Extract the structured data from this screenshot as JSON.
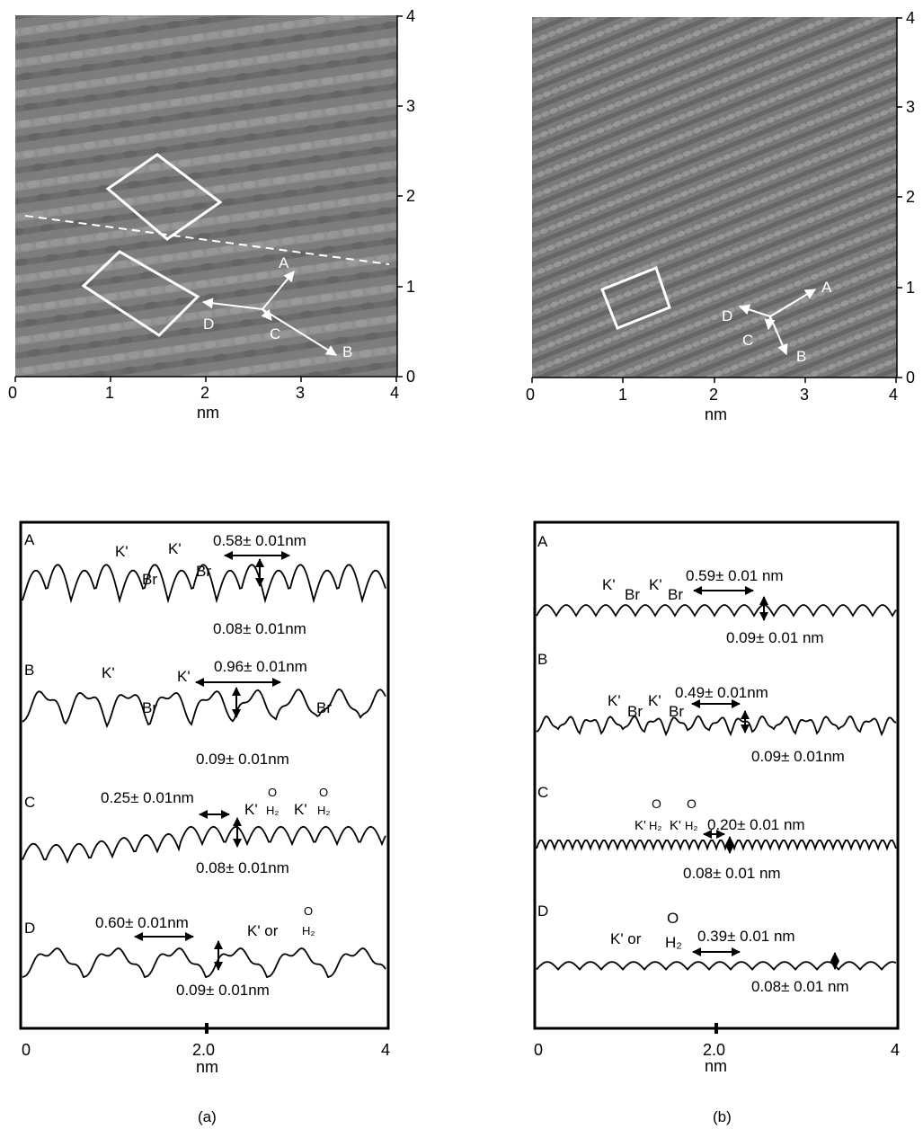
{
  "panel_a": {
    "caption": "(a)",
    "image": {
      "x_ticks": [
        "0",
        "1",
        "2",
        "3",
        "4"
      ],
      "y_ticks": [
        "0",
        "1",
        "2",
        "3",
        "4"
      ],
      "x_unit": "nm",
      "vectors": [
        "A",
        "B",
        "C",
        "D"
      ]
    },
    "profiles": {
      "rows": [
        {
          "letter": "A",
          "labels": [
            "K'",
            "Br",
            "K'",
            "Br"
          ],
          "spacing": "0.58± 0.01nm",
          "height": "0.08± 0.01nm"
        },
        {
          "letter": "B",
          "labels": [
            "K'",
            "Br",
            "K'",
            "Br"
          ],
          "spacing": "0.96± 0.01nm",
          "height": "0.09± 0.01nm"
        },
        {
          "letter": "C",
          "labels": [
            "K'",
            "O",
            "H₂",
            "K'",
            "O",
            "H₂"
          ],
          "spacing": "0.25± 0.01nm",
          "height": "0.08± 0.01nm"
        },
        {
          "letter": "D",
          "labels": [
            "K' or",
            "O",
            "H₂"
          ],
          "spacing": "0.60± 0.01nm",
          "height": "0.09± 0.01nm"
        }
      ],
      "x_ticks": [
        "0",
        "2.0",
        "4"
      ],
      "x_unit": "nm"
    }
  },
  "panel_b": {
    "caption": "(b)",
    "image": {
      "x_ticks": [
        "0",
        "1",
        "2",
        "3",
        "4"
      ],
      "y_ticks": [
        "0",
        "1",
        "2",
        "3",
        "4"
      ],
      "x_unit": "nm",
      "vectors": [
        "A",
        "B",
        "C",
        "D"
      ]
    },
    "profiles": {
      "rows": [
        {
          "letter": "A",
          "labels": [
            "K'",
            "Br",
            "K'",
            "Br"
          ],
          "spacing": "0.59± 0.01 nm",
          "height": "0.09± 0.01 nm"
        },
        {
          "letter": "B",
          "labels": [
            "K'",
            "Br",
            "K'",
            "Br"
          ],
          "spacing": "0.49± 0.01nm",
          "height": "0.09± 0.01nm"
        },
        {
          "letter": "C",
          "labels": [
            "O",
            "O",
            "K'",
            "H₂",
            "K'",
            "H₂"
          ],
          "spacing": "0.20± 0.01 nm",
          "height": "0.08± 0.01 nm"
        },
        {
          "letter": "D",
          "labels": [
            "K' or",
            "O",
            "H₂"
          ],
          "spacing": "0.39± 0.01 nm",
          "height": "0.08± 0.01 nm"
        }
      ],
      "x_ticks": [
        "0",
        "2.0",
        "4"
      ],
      "x_unit": "nm"
    }
  }
}
